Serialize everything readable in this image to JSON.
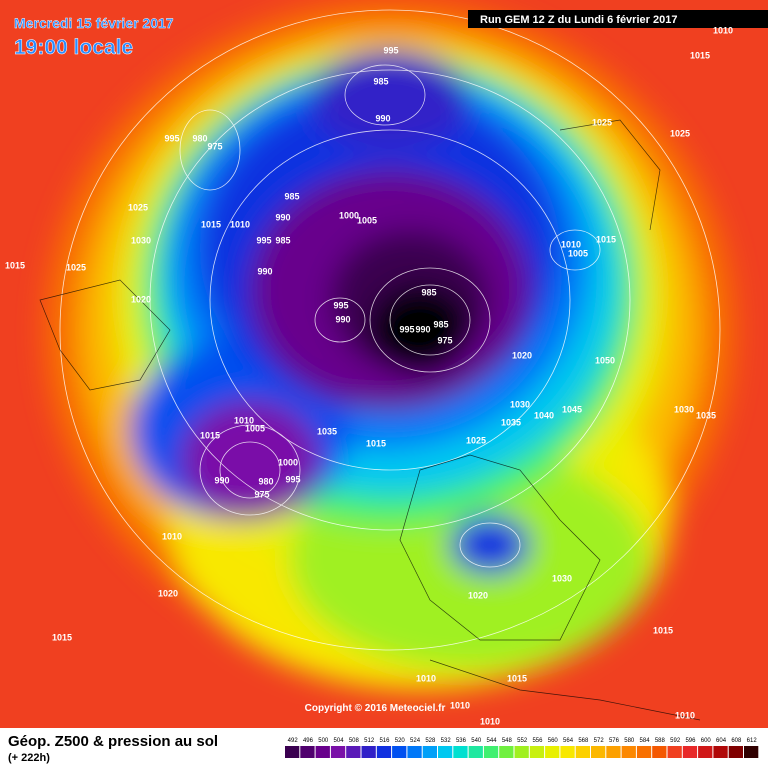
{
  "header": {
    "date": "Mercredi 15 février 2017",
    "time": "19:00 locale",
    "run": "Run GEM 12 Z du Lundi 6 février 2017"
  },
  "footer": {
    "title": "Géop. Z500 & pression au sol",
    "lead": "(+ 222h)",
    "copyright": "Copyright © 2016 Meteociel.fr"
  },
  "legend": {
    "levels": [
      492,
      496,
      500,
      504,
      508,
      512,
      516,
      520,
      524,
      528,
      532,
      536,
      540,
      544,
      548,
      552,
      556,
      560,
      564,
      568,
      572,
      576,
      580,
      584,
      588,
      592,
      596,
      600,
      604,
      608,
      612
    ],
    "colors": [
      "#3a0050",
      "#50006e",
      "#68008c",
      "#7a10a8",
      "#5a1ab8",
      "#3020c8",
      "#1030e0",
      "#0050f0",
      "#0078f8",
      "#00a0f8",
      "#00c8f0",
      "#00e0d0",
      "#20e8a0",
      "#40f070",
      "#70f040",
      "#a0f020",
      "#c8f010",
      "#e8f000",
      "#f8e800",
      "#fcd000",
      "#fcb800",
      "#fca000",
      "#fc8800",
      "#f87000",
      "#f45800",
      "#f04020",
      "#e82828",
      "#d01818",
      "#b00808",
      "#800000",
      "#300000"
    ]
  },
  "isobar_labels": [
    1010,
    1015,
    995,
    985,
    990,
    995,
    980,
    975,
    1025,
    1025,
    1025,
    1015,
    1010,
    985,
    990,
    1000,
    1005,
    995,
    985,
    1010,
    1015,
    1005,
    1030,
    1015,
    1025,
    990,
    985,
    1020,
    995,
    990,
    995,
    990,
    985,
    975,
    1020,
    1050,
    1030,
    1045,
    1040,
    1030,
    1035,
    1035,
    1010,
    1005,
    1015,
    1035,
    1015,
    1025,
    1000,
    990,
    980,
    995,
    975,
    1010,
    1030,
    1020,
    1020,
    1015,
    1015,
    1010,
    1015,
    1010,
    1010,
    1010
  ]
}
